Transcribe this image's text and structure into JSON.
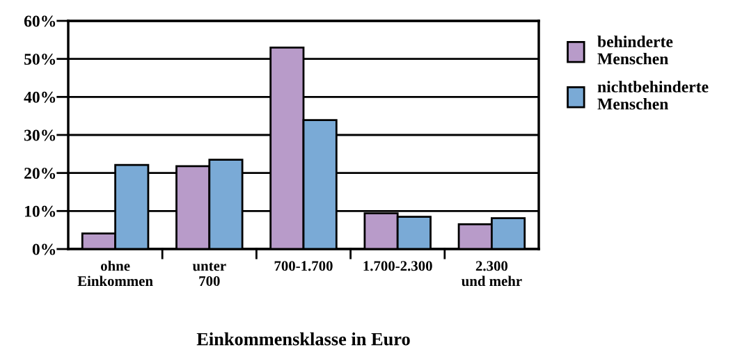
{
  "chart_data": {
    "type": "bar",
    "xlabel": "Einkommensklasse in Euro",
    "categories": [
      "ohne\nEinkommen",
      "unter\n700",
      "700-1.700",
      "1.700-2.300",
      "2.300\nund mehr"
    ],
    "series": [
      {
        "name": "behinderte\nMenschen",
        "color": "#b89bc9",
        "values": [
          4.1,
          21.8,
          53.0,
          9.4,
          6.5
        ]
      },
      {
        "name": "nichtbehinderte\nMenschen",
        "color": "#7aaad6",
        "values": [
          22.1,
          23.5,
          33.9,
          8.5,
          8.1
        ]
      }
    ],
    "ylim": [
      0,
      60
    ],
    "yticks": [
      {
        "value": 0,
        "label": "0%"
      },
      {
        "value": 10,
        "label": "10%"
      },
      {
        "value": 20,
        "label": "20%"
      },
      {
        "value": 30,
        "label": "30%"
      },
      {
        "value": 40,
        "label": "40%"
      },
      {
        "value": 50,
        "label": "50%"
      },
      {
        "value": 60,
        "label": "60%"
      }
    ],
    "grid": "y",
    "legend": "right"
  }
}
